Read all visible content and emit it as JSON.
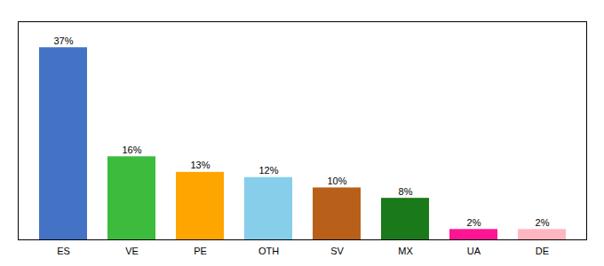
{
  "chart_data": {
    "type": "bar",
    "categories": [
      "ES",
      "VE",
      "PE",
      "OTH",
      "SV",
      "MX",
      "UA",
      "DE"
    ],
    "values": [
      37,
      16,
      13,
      12,
      10,
      8,
      2,
      2
    ],
    "value_labels": [
      "37%",
      "16%",
      "13%",
      "12%",
      "10%",
      "8%",
      "2%",
      "2%"
    ],
    "colors": [
      "#4472c4",
      "#3dbb3d",
      "#ffa500",
      "#87ceeb",
      "#b8601a",
      "#1a7a1a",
      "#ff1493",
      "#ffb6c1"
    ],
    "ylim": [
      0,
      42
    ],
    "yticks": [],
    "tick_labels": "x",
    "data_labels": true,
    "grid": false
  }
}
